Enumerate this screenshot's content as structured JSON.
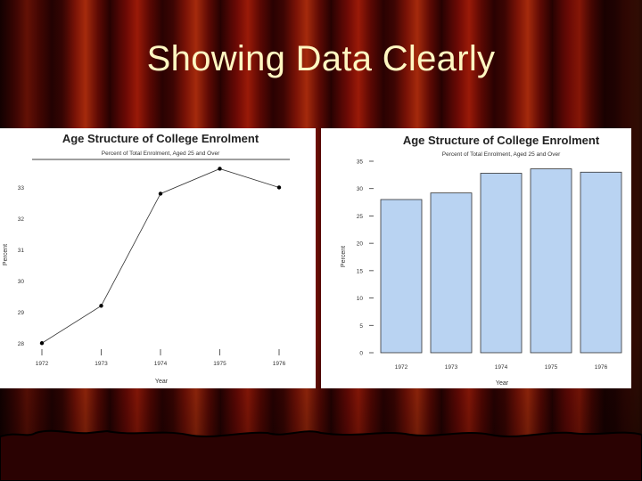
{
  "slide": {
    "title": "Showing Data Clearly"
  },
  "chart_data": [
    {
      "type": "line",
      "title": "Age Structure of College Enrolment",
      "subtitle": "Percent of Total Enrolment, Aged 25 and Over",
      "xlabel": "Year",
      "ylabel": "Percent",
      "x": [
        "1972",
        "1973",
        "1974",
        "1975",
        "1976"
      ],
      "values": [
        28.0,
        29.2,
        32.8,
        33.6,
        33.0
      ],
      "yticks": [
        "28",
        "29",
        "30",
        "31",
        "32",
        "33"
      ],
      "ylim": [
        27.95,
        33.9
      ],
      "color": "#000000"
    },
    {
      "type": "bar",
      "title": "Age Structure of College Enrolment",
      "subtitle": "Percent of Total Enrolment, Aged 25 and Over",
      "xlabel": "Year",
      "ylabel": "Percent",
      "categories": [
        "1972",
        "1973",
        "1974",
        "1975",
        "1976"
      ],
      "values": [
        28.0,
        29.2,
        32.8,
        33.6,
        33.0
      ],
      "yticks": [
        "0",
        "5",
        "10",
        "15",
        "20",
        "25",
        "30",
        "35"
      ],
      "ylim": [
        0,
        35
      ],
      "color": "#b9d3f2"
    }
  ]
}
